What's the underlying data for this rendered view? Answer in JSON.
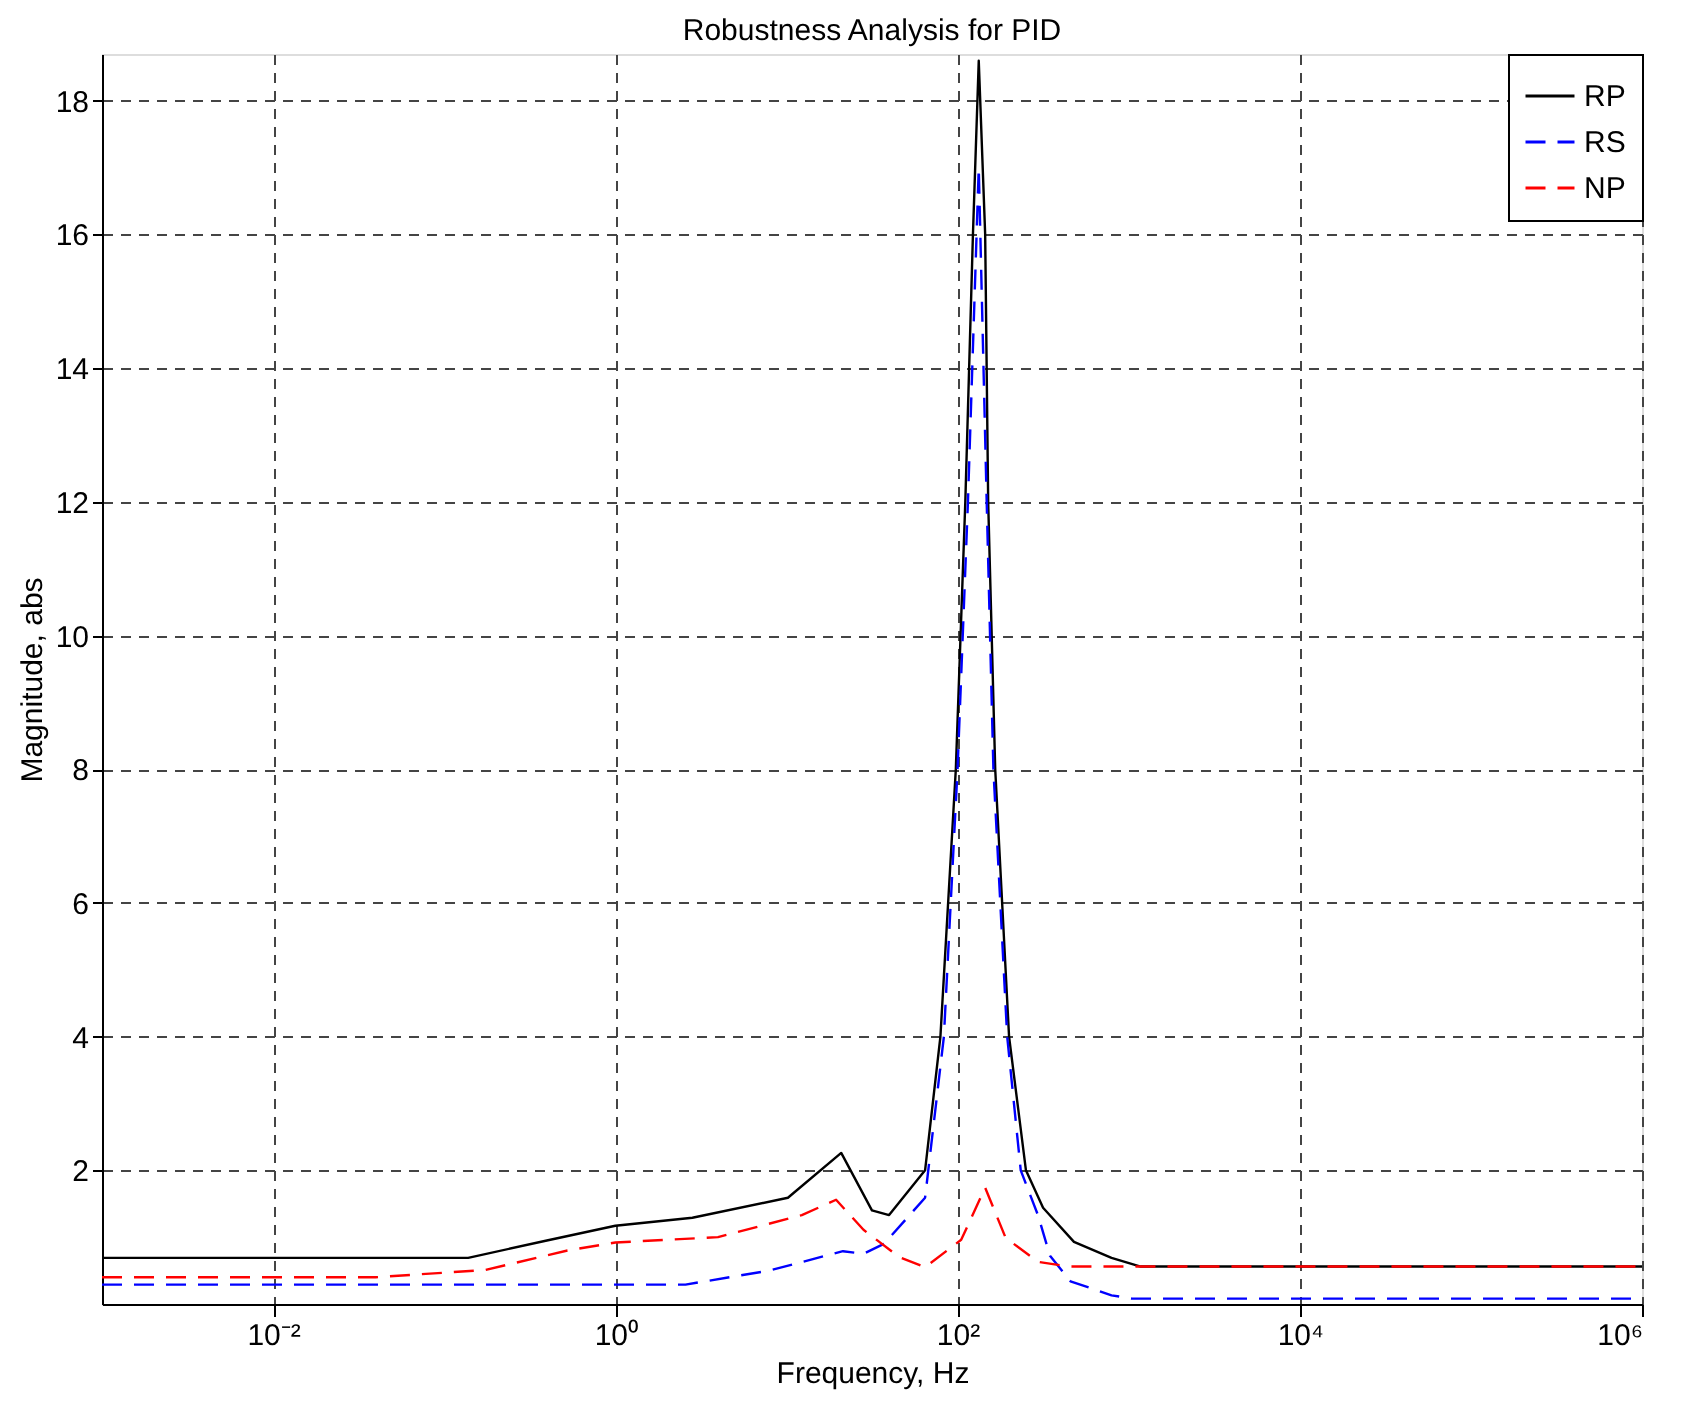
{
  "chart_data": {
    "type": "line",
    "title": "Robustness Analysis for PID",
    "xlabel": "Frequency, Hz",
    "ylabel": "Magnitude, abs",
    "log": "x",
    "xlim": [
      0.001,
      1000000
    ],
    "ylim": [
      0,
      18.7
    ],
    "xticks": [
      {
        "value": 0.01,
        "label": "10⁻²"
      },
      {
        "value": 1,
        "label": "10⁰"
      },
      {
        "value": 100,
        "label": "10²"
      },
      {
        "value": 10000,
        "label": "10⁴"
      },
      {
        "value": 1000000,
        "label": "10⁶"
      }
    ],
    "yticks": [
      2,
      4,
      6,
      8,
      10,
      12,
      14,
      16,
      18
    ],
    "grid": true,
    "legend": "top right",
    "series": [
      {
        "name": "RP",
        "color": "#000000",
        "line_style": "solid",
        "x": [
          0.001,
          0.138,
          0.398,
          1,
          2.82,
          10.2,
          20.9,
          31.6,
          39.8,
          64.6,
          79.4,
          97.7,
          111,
          123,
          133,
          145,
          151,
          166,
          200,
          251,
          316,
          479,
          794,
          1175,
          1000000
        ],
        "values": [
          0.69,
          0.69,
          0.95,
          1.17,
          1.29,
          1.59,
          2.26,
          1.4,
          1.33,
          2.0,
          4,
          8,
          12,
          16,
          18.6,
          16,
          12,
          8,
          4,
          2,
          1.44,
          0.93,
          0.69,
          0.56,
          0.56
        ]
      },
      {
        "name": "RS",
        "color": "#0000ff",
        "line_style": "dashed",
        "x": [
          0.001,
          2.57,
          7.94,
          21.4,
          28.2,
          37.2,
          64.6,
          83.2,
          100,
          115,
          133,
          148,
          162,
          195,
          234,
          295,
          347,
          457,
          794,
          1047,
          1000000
        ],
        "values": [
          0.29,
          0.29,
          0.5,
          0.79,
          0.75,
          0.9,
          1.59,
          4,
          8,
          12,
          17.0,
          12,
          8,
          4,
          2,
          1.33,
          0.72,
          0.34,
          0.13,
          0.08,
          0.08
        ]
      },
      {
        "name": "NP",
        "color": "#ff0000",
        "line_style": "dashed",
        "x": [
          0.001,
          0.0398,
          0.174,
          0.525,
          1,
          3.98,
          12.3,
          19.5,
          28.2,
          45.7,
          64.6,
          105,
          145,
          191,
          295,
          447,
          1000000
        ],
        "values": [
          0.4,
          0.4,
          0.51,
          0.8,
          0.92,
          1.0,
          1.33,
          1.56,
          1.11,
          0.7,
          0.55,
          0.96,
          1.74,
          0.99,
          0.63,
          0.56,
          0.56
        ]
      }
    ]
  }
}
